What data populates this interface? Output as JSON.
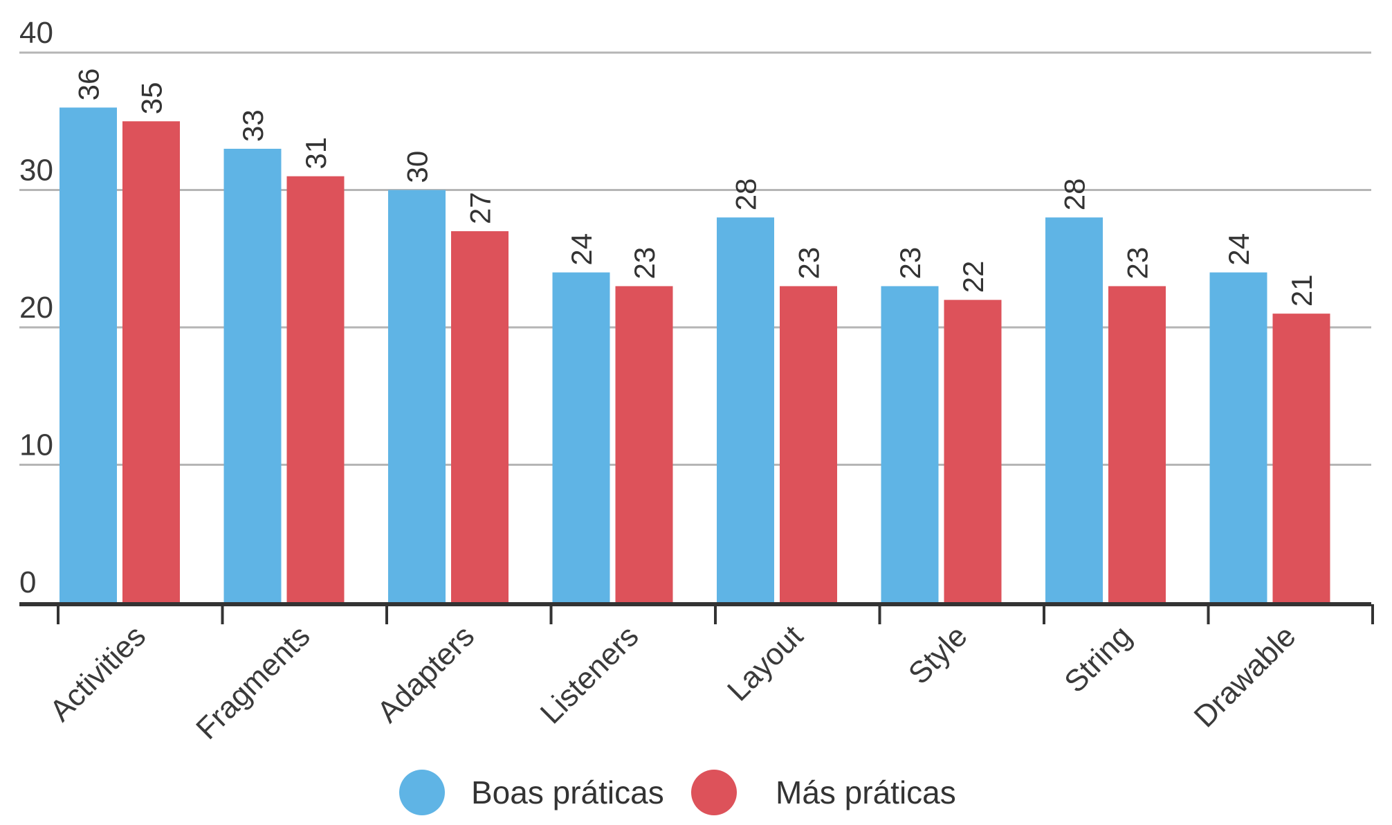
{
  "chart_data": {
    "type": "bar",
    "categories": [
      "Activities",
      "Fragments",
      "Adapters",
      "Listeners",
      "Layout",
      "Style",
      "String",
      "Drawable"
    ],
    "series": [
      {
        "name": "Boas práticas",
        "color": "#5fb4e5",
        "values": [
          36,
          33,
          30,
          24,
          28,
          23,
          28,
          24
        ]
      },
      {
        "name": "Más práticas",
        "color": "#dd525a",
        "values": [
          35,
          31,
          27,
          23,
          23,
          22,
          23,
          21
        ]
      }
    ],
    "yticks": [
      0,
      10,
      20,
      30,
      40
    ],
    "ylim": [
      0,
      40
    ],
    "grid": true,
    "legend": "bottom-center",
    "title": "",
    "xlabel": "",
    "ylabel": ""
  }
}
